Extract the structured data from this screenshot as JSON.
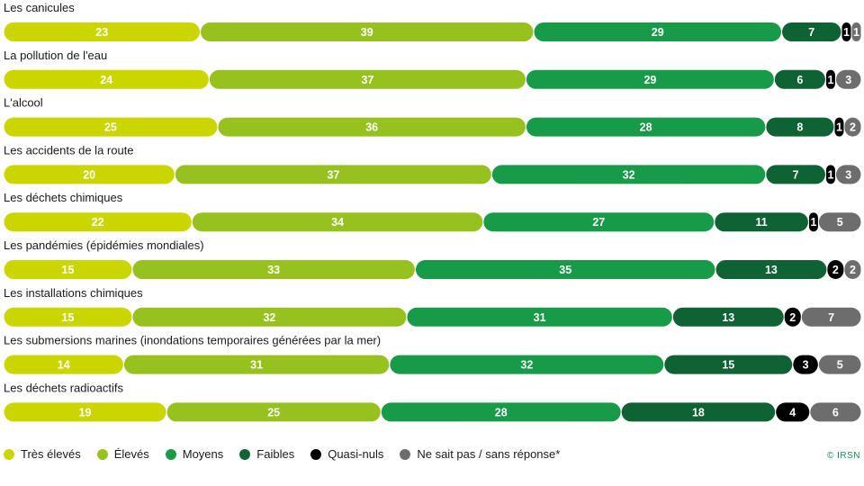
{
  "chart_data": {
    "type": "bar",
    "stacked": true,
    "orientation": "horizontal",
    "categories": [
      "Les canicules",
      "La pollution de l'eau",
      "L'alcool",
      "Les accidents de la route",
      "Les déchets chimiques",
      "Les pandémies (épidémies mondiales)",
      "Les installations chimiques",
      "Les submersions marines (inondations temporaires générées par la mer)",
      "Les déchets radioactifs"
    ],
    "series": [
      {
        "name": "Très élevés",
        "color": "#cbd600",
        "values": [
          23,
          24,
          25,
          20,
          22,
          15,
          15,
          14,
          19
        ]
      },
      {
        "name": "Élevés",
        "color": "#96c11f",
        "values": [
          39,
          37,
          36,
          37,
          34,
          33,
          32,
          31,
          25
        ]
      },
      {
        "name": "Moyens",
        "color": "#179b48",
        "values": [
          29,
          29,
          28,
          32,
          27,
          35,
          31,
          32,
          28
        ]
      },
      {
        "name": "Faibles",
        "color": "#0e6233",
        "values": [
          7,
          6,
          8,
          7,
          11,
          13,
          13,
          15,
          18
        ]
      },
      {
        "name": "Quasi-nuls",
        "color": "#000000",
        "values": [
          1,
          1,
          1,
          1,
          1,
          2,
          2,
          3,
          4
        ]
      },
      {
        "name": "Ne sait pas / sans réponse*",
        "color": "#6d6d6d",
        "values": [
          1,
          3,
          2,
          3,
          5,
          2,
          7,
          5,
          6
        ]
      }
    ],
    "legend_position": "bottom-left"
  },
  "credit": "© IRSN"
}
